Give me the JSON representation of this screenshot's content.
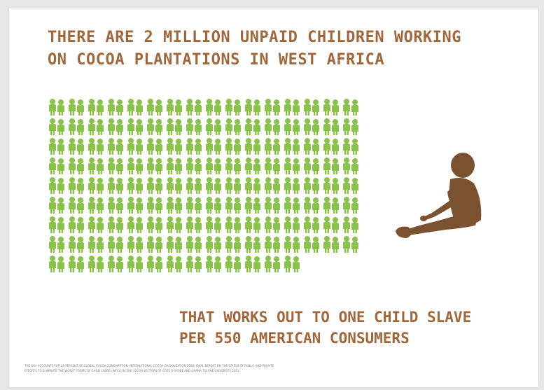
{
  "headline": {
    "line1": "THERE ARE 2 MILLION UNPAID CHILDREN WORKING",
    "line2": "ON COCOA PLANTATIONS IN WEST AFRICA"
  },
  "pictogram": {
    "icon": "child-pair-icon",
    "color": "#8bc34a",
    "full_rows": 8,
    "icons_per_row": 16,
    "last_row_icons": 13
  },
  "featured_icon": {
    "icon": "sitting-child-icon",
    "color": "#7a5230"
  },
  "tagline": {
    "line1": "THAT WORKS OUT TO ONE CHILD SLAVE",
    "line2": "PER 550 AMERICAN CONSUMERS"
  },
  "footnote": {
    "line1": "THE USA ACCOUNTS FOR 28 PERCENT OF GLOBAL COCOA CONSUMPTION (INTERNATIONAL COCOA ORGANIZATION 2008)     FINAL REPORT ON THE STATUS OF PUBLIC AND PRIVATE",
    "line2": "EFFORTS TO ELIMINATE THE WORST FORMS OF CHILD LABOR (WFCL) IN THE COCOA SECTORS OF COTE D'IVOIRE AND GHANA TULANE UNIVERSITY 2011"
  },
  "colors": {
    "text": "#a0673a",
    "icon_green": "#8bc34a",
    "figure_brown": "#7a5230",
    "background": "#ffffff"
  }
}
